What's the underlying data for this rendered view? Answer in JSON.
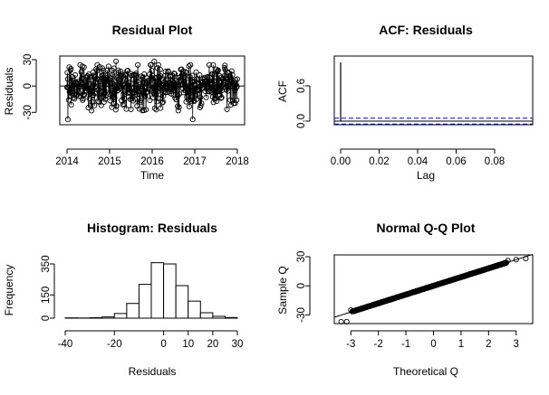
{
  "chart_data": [
    {
      "type": "line",
      "title": "Residual Plot",
      "xlabel": "Time",
      "ylabel": "Residuals",
      "xlim": [
        2014,
        2018
      ],
      "ylim": [
        -40,
        30
      ],
      "x_ticks": [
        "2014",
        "2015",
        "2016",
        "2017",
        "2018"
      ],
      "y_ticks": [
        "-30",
        "0",
        "30"
      ],
      "reference_line": 0,
      "markers": "open circles",
      "series": [
        {
          "values_summary": "daily residuals fluctuating mostly between -20 and 20, extremes near -38 (early 2014, early 2017) and near 28 (2015-2016)"
        }
      ]
    },
    {
      "type": "bar",
      "title": "ACF: Residuals",
      "xlabel": "Lag",
      "ylabel": "ACF",
      "x_ticks": [
        "0.00",
        "0.02",
        "0.04",
        "0.06",
        "0.08"
      ],
      "y_ticks": [
        "0.0",
        "0.6"
      ],
      "lag0_value": 1.0,
      "confidence_band": [
        -0.05,
        0.05
      ],
      "band_color": "#0000ff"
    },
    {
      "type": "bar",
      "title": "Histogram: Residuals",
      "xlabel": "Residuals",
      "ylabel": "Frequency",
      "x_ticks": [
        "-40",
        "-20",
        "0",
        "10",
        "20",
        "30"
      ],
      "y_ticks": [
        "0",
        "150",
        "350"
      ],
      "bin_width": 5,
      "bins": [
        {
          "from": -40,
          "to": -35,
          "count": 2
        },
        {
          "from": -35,
          "to": -30,
          "count": 1
        },
        {
          "from": -30,
          "to": -25,
          "count": 3
        },
        {
          "from": -25,
          "to": -20,
          "count": 8
        },
        {
          "from": -20,
          "to": -15,
          "count": 30
        },
        {
          "from": -15,
          "to": -10,
          "count": 95
        },
        {
          "from": -10,
          "to": -5,
          "count": 218
        },
        {
          "from": -5,
          "to": 0,
          "count": 358
        },
        {
          "from": 0,
          "to": 5,
          "count": 350
        },
        {
          "from": 5,
          "to": 10,
          "count": 210
        },
        {
          "from": 10,
          "to": 15,
          "count": 110
        },
        {
          "from": 15,
          "to": 20,
          "count": 35
        },
        {
          "from": 20,
          "to": 25,
          "count": 12
        },
        {
          "from": 25,
          "to": 30,
          "count": 4
        }
      ]
    },
    {
      "type": "scatter",
      "title": "Normal Q-Q Plot",
      "xlabel": "Theoretical Q",
      "ylabel": "Sample Q",
      "xlim": [
        -3.6,
        3.6
      ],
      "ylim": [
        -38,
        30
      ],
      "x_ticks": [
        "-3",
        "-2",
        "-1",
        "0",
        "1",
        "2",
        "3"
      ],
      "y_ticks": [
        "-30",
        "0",
        "30"
      ],
      "reference_line": {
        "intercept": 0,
        "slope": 9
      },
      "tail_points": [
        [
          -3.35,
          -37
        ],
        [
          -3.15,
          -37
        ],
        [
          -3.0,
          -25
        ],
        [
          2.7,
          26
        ],
        [
          3.0,
          27
        ],
        [
          3.35,
          28
        ]
      ]
    }
  ]
}
